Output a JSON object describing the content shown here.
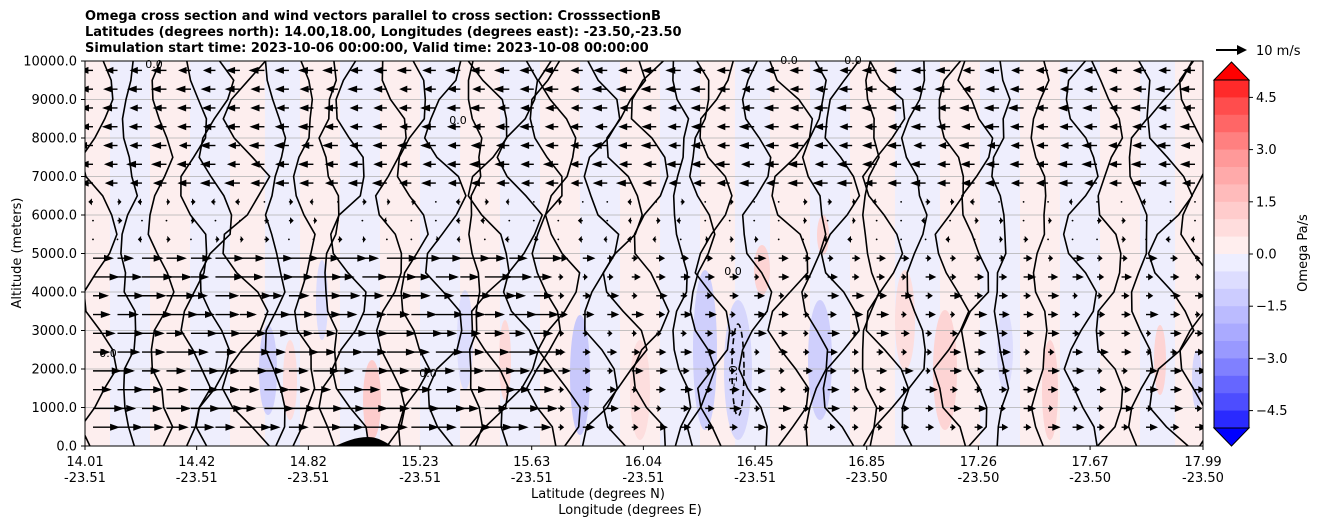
{
  "chart_data": {
    "type": "contour",
    "title_lines": [
      "Omega cross section and wind vectors parallel to cross section: CrosssectionB",
      "Latitudes (degrees north): 14.00,18.00, Longitudes (degrees east): -23.50,-23.50",
      "Simulation start time: 2023-10-06 00:00:00, Valid time: 2023-10-08 00:00:00"
    ],
    "xlabel_lines": [
      "Latitude (degrees N)",
      "Longitude (degrees E)"
    ],
    "ylabel": "Altitude (meters)",
    "x_ticks": [
      {
        "lat": "14.01",
        "lon": "-23.51"
      },
      {
        "lat": "14.42",
        "lon": "-23.51"
      },
      {
        "lat": "14.82",
        "lon": "-23.51"
      },
      {
        "lat": "15.23",
        "lon": "-23.51"
      },
      {
        "lat": "15.63",
        "lon": "-23.51"
      },
      {
        "lat": "16.04",
        "lon": "-23.51"
      },
      {
        "lat": "16.45",
        "lon": "-23.51"
      },
      {
        "lat": "16.85",
        "lon": "-23.50"
      },
      {
        "lat": "17.26",
        "lon": "-23.50"
      },
      {
        "lat": "17.67",
        "lon": "-23.50"
      },
      {
        "lat": "17.99",
        "lon": "-23.50"
      }
    ],
    "y_ticks": [
      "0.0",
      "1000.0",
      "2000.0",
      "3000.0",
      "4000.0",
      "5000.0",
      "6000.0",
      "7000.0",
      "8000.0",
      "9000.0",
      "10000.0"
    ],
    "ylim": [
      0,
      10000
    ],
    "grid": "horizontal",
    "colorbar": {
      "label": "Omega Pa/s",
      "ticks": [
        "4.5",
        "3.0",
        "1.5",
        "0.0",
        "−1.5",
        "−3.0",
        "−4.5"
      ],
      "range": [
        -5,
        5
      ],
      "colormap": "bwr",
      "extend": "both"
    },
    "vector_key": {
      "label": "10 m/s"
    },
    "contour_labels": [
      "0.0",
      "-1.0",
      "0.0",
      "0.0",
      "0.0",
      "0.0",
      "0.0",
      "0.0"
    ],
    "colors": {
      "positive": "#ff0000",
      "negative": "#0000ff",
      "contour": "#000000",
      "grid": "#b0b0b0"
    }
  }
}
